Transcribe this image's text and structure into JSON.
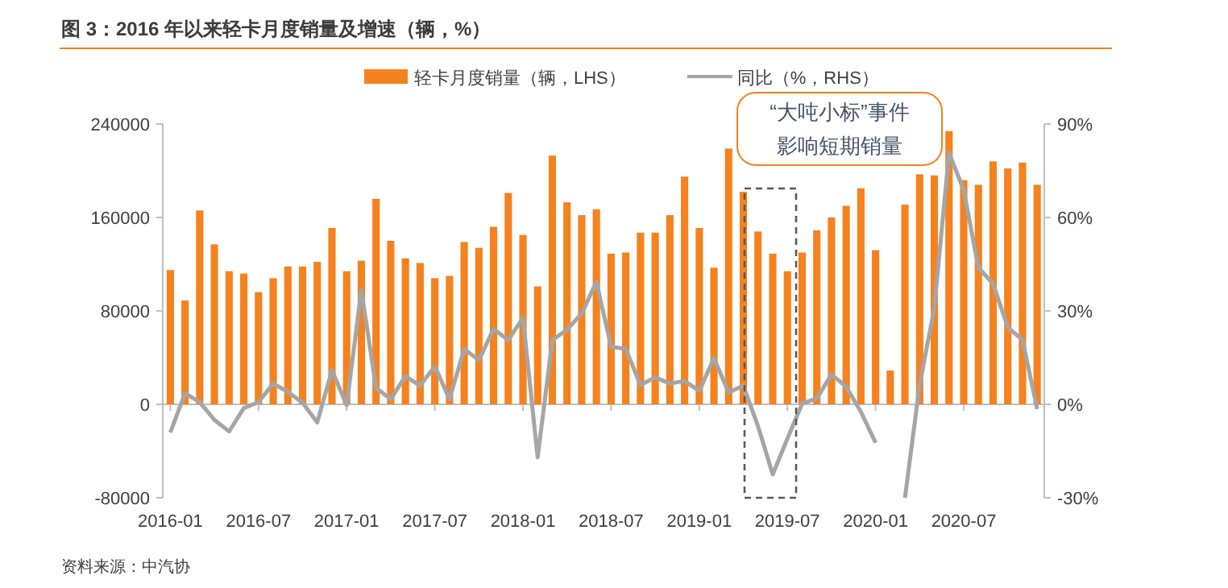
{
  "chart_data": {
    "type": "bar",
    "title": "图 3：2016 年以来轻卡月度销量及增速（辆，%）",
    "x": [
      "2016-01",
      "2016-02",
      "2016-03",
      "2016-04",
      "2016-05",
      "2016-06",
      "2016-07",
      "2016-08",
      "2016-09",
      "2016-10",
      "2016-11",
      "2016-12",
      "2017-01",
      "2017-02",
      "2017-03",
      "2017-04",
      "2017-05",
      "2017-06",
      "2017-07",
      "2017-08",
      "2017-09",
      "2017-10",
      "2017-11",
      "2017-12",
      "2018-01",
      "2018-02",
      "2018-03",
      "2018-04",
      "2018-05",
      "2018-06",
      "2018-07",
      "2018-08",
      "2018-09",
      "2018-10",
      "2018-11",
      "2018-12",
      "2019-01",
      "2019-02",
      "2019-03",
      "2019-04",
      "2019-05",
      "2019-06",
      "2019-07",
      "2019-08",
      "2019-09",
      "2019-10",
      "2019-11",
      "2019-12",
      "2020-01",
      "2020-02",
      "2020-03",
      "2020-04",
      "2020-05",
      "2020-06",
      "2020-07",
      "2020-08",
      "2020-09",
      "2020-10",
      "2020-11",
      "2020-12"
    ],
    "series": [
      {
        "name": "轻卡月度销量（辆，LHS）",
        "color": "#f5821f",
        "values": [
          115000,
          89000,
          166000,
          137000,
          114000,
          112000,
          96000,
          108000,
          118000,
          118000,
          122000,
          151000,
          114000,
          123000,
          176000,
          140000,
          125000,
          121000,
          108000,
          110000,
          139000,
          134000,
          152000,
          181000,
          145000,
          101000,
          213000,
          173000,
          162000,
          167000,
          129000,
          130000,
          147000,
          147000,
          162000,
          195000,
          151000,
          117000,
          219000,
          182000,
          148000,
          129000,
          114000,
          130000,
          149000,
          160000,
          170000,
          185000,
          132000,
          29000,
          171000,
          197000,
          196000,
          234000,
          192000,
          188000,
          208000,
          202000,
          207000,
          188000
        ]
      },
      {
        "name": "同比（%，RHS）",
        "type": "line",
        "axis": "y2",
        "color": "#a5a5a5",
        "values": [
          -9,
          3.6,
          0.7,
          -5,
          -8.7,
          -1.2,
          0.7,
          6.7,
          4,
          0.5,
          -5.8,
          11,
          -0.3,
          36.7,
          5.3,
          1.7,
          9,
          6,
          12.2,
          1.7,
          17.7,
          14.2,
          24.2,
          20.6,
          27.8,
          -17,
          20.6,
          24,
          29.2,
          39.3,
          18.5,
          17.8,
          6.2,
          8.7,
          6.7,
          7.5,
          4.3,
          14.8,
          3.8,
          6,
          -7,
          -22.5,
          -11,
          0.2,
          1.9,
          9.6,
          5.7,
          -2.4,
          -12.3,
          null,
          -30,
          6.2,
          31,
          80.8,
          68.8,
          43.9,
          38.7,
          24.7,
          20.7,
          -1.5
        ]
      }
    ],
    "xlim": [
      "2015-12-16",
      "2020-12-16"
    ],
    "xticks": [
      "2016-01",
      "2016-07",
      "2017-01",
      "2017-07",
      "2018-01",
      "2018-07",
      "2019-01",
      "2019-07",
      "2020-01",
      "2020-07"
    ],
    "ylim": [
      -80000,
      240000
    ],
    "yticks": [
      -80000,
      0,
      80000,
      160000,
      240000
    ],
    "y2lim": [
      -30,
      90
    ],
    "y2ticks": [
      {
        "value": -30,
        "label": "-30%"
      },
      {
        "value": 0,
        "label": "0%"
      },
      {
        "value": 30,
        "label": "30%"
      },
      {
        "value": 60,
        "label": "60%"
      },
      {
        "value": 90,
        "label": "90%"
      }
    ],
    "annotations": [
      "“大吨小标”事件影响短期销量",
      "资料来源：中汽协"
    ],
    "legend": "top"
  }
}
